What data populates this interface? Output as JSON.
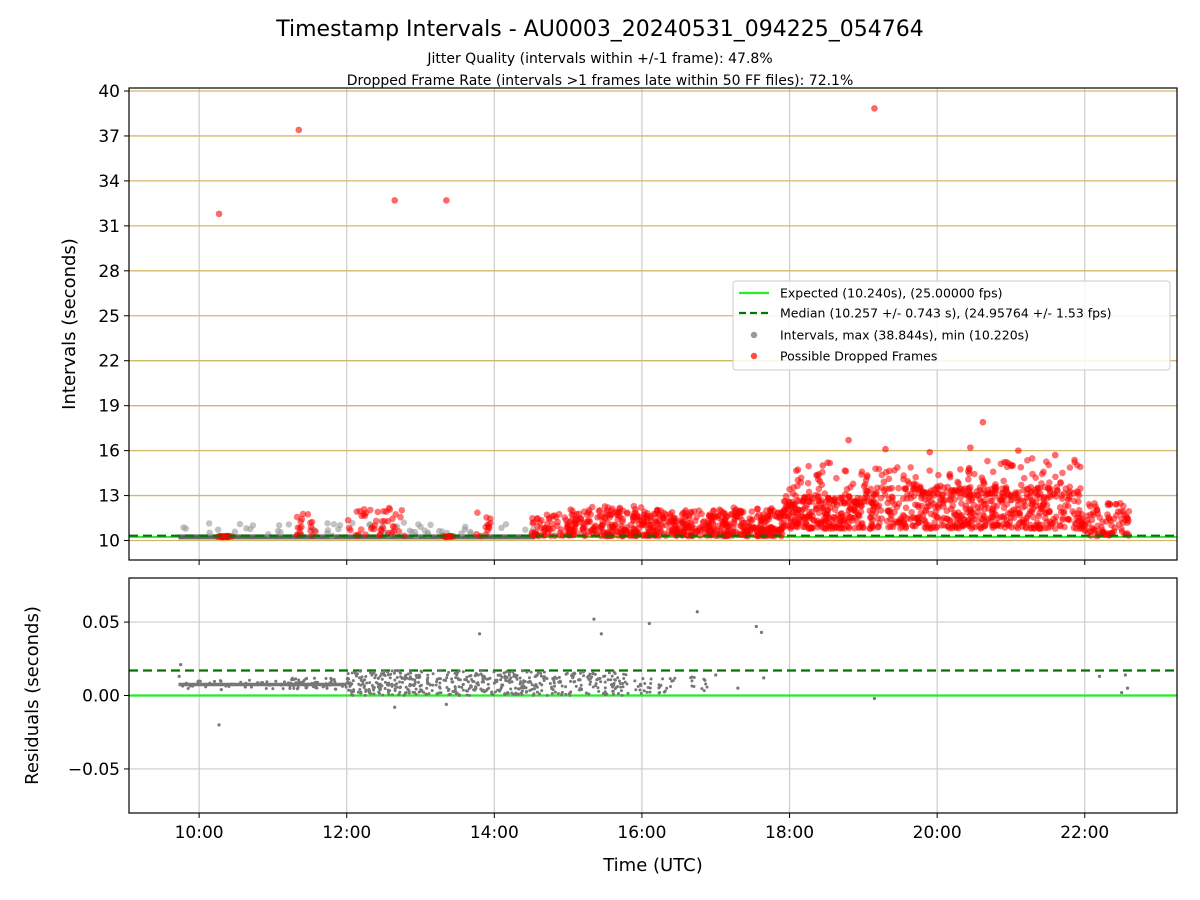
{
  "chart_data": [
    {
      "type": "scatter",
      "title": "Timestamp Intervals - AU0003_20240531_094225_054764",
      "subtitle_lines": [
        "Jitter Quality (intervals within +/-1 frame): 47.8%",
        "Dropped Frame Rate (intervals >1 frames late within 50 FF files): 72.1%"
      ],
      "xlabel": "",
      "ylabel": "Intervals (seconds)",
      "xlim": [
        9.05,
        23.25
      ],
      "ylim": [
        8.7,
        40.2
      ],
      "yticks": [
        10,
        13,
        16,
        19,
        22,
        25,
        28,
        31,
        34,
        37,
        40
      ],
      "ytick_labels": [
        "10",
        "13",
        "16",
        "19",
        "22",
        "25",
        "28",
        "31",
        "34",
        "37",
        "40"
      ],
      "xticks": [
        10,
        12,
        14,
        16,
        18,
        20,
        22
      ],
      "show_xtick_labels": false,
      "grid": "x-gray, y-goldenrod",
      "legend_position": "right",
      "legend": [
        "Expected (10.240s), (25.00000 fps)",
        "Median (10.257 +/- 0.743 s), (24.95764 +/- 1.53 fps)",
        "Intervals, max (38.844s), min (10.220s)",
        "Possible Dropped Frames"
      ],
      "colors": {
        "expected": "#22ee22",
        "median": "#007700",
        "intervals": "#999999",
        "dropped": "#ff0000"
      },
      "expected_line": 10.24,
      "median_line": 10.257,
      "intervals_band": {
        "x": [
          9.72,
          14.55
        ],
        "y": 10.24
      },
      "outliers": [
        {
          "x": 10.27,
          "y": 31.8
        },
        {
          "x": 11.35,
          "y": 37.4
        },
        {
          "x": 12.65,
          "y": 32.7
        },
        {
          "x": 13.35,
          "y": 32.7
        },
        {
          "x": 19.15,
          "y": 38.84
        }
      ],
      "dropped_clusters": [
        {
          "x": [
            10.25,
            10.45
          ],
          "y": [
            10.24,
            10.3
          ],
          "n": 25
        },
        {
          "x": [
            11.3,
            11.6
          ],
          "y": [
            10.3,
            11.8
          ],
          "n": 18
        },
        {
          "x": [
            12.0,
            12.8
          ],
          "y": [
            10.3,
            12.2
          ],
          "n": 45
        },
        {
          "x": [
            13.3,
            13.45
          ],
          "y": [
            10.24,
            10.3
          ],
          "n": 12
        },
        {
          "x": [
            13.75,
            13.95
          ],
          "y": [
            10.3,
            11.9
          ],
          "n": 12
        },
        {
          "x": [
            14.5,
            15.1
          ],
          "y": [
            10.3,
            11.8
          ],
          "n": 60
        },
        {
          "x": [
            15.0,
            16.0
          ],
          "y": [
            10.3,
            12.3
          ],
          "n": 170
        },
        {
          "x": [
            16.0,
            17.0
          ],
          "y": [
            10.3,
            12.1
          ],
          "n": 190
        },
        {
          "x": [
            17.0,
            17.9
          ],
          "y": [
            10.3,
            12.2
          ],
          "n": 190
        },
        {
          "x": [
            17.9,
            19.0
          ],
          "y": [
            10.8,
            13.0
          ],
          "n": 220
        },
        {
          "x": [
            18.0,
            19.0
          ],
          "y": [
            12.5,
            15.2
          ],
          "n": 50
        },
        {
          "x": [
            19.0,
            20.5
          ],
          "y": [
            10.8,
            13.6
          ],
          "n": 260
        },
        {
          "x": [
            19.0,
            20.5
          ],
          "y": [
            13.0,
            15.0
          ],
          "n": 60
        },
        {
          "x": [
            20.5,
            22.0
          ],
          "y": [
            10.8,
            13.6
          ],
          "n": 260
        },
        {
          "x": [
            20.5,
            22.0
          ],
          "y": [
            13.0,
            15.5
          ],
          "n": 60
        },
        {
          "x": [
            22.0,
            22.6
          ],
          "y": [
            10.3,
            12.5
          ],
          "n": 80
        }
      ],
      "dropped_points": [
        {
          "x": 18.8,
          "y": 16.7
        },
        {
          "x": 19.3,
          "y": 16.1
        },
        {
          "x": 19.9,
          "y": 15.9
        },
        {
          "x": 20.45,
          "y": 16.2
        },
        {
          "x": 20.62,
          "y": 17.9
        },
        {
          "x": 21.1,
          "y": 16.0
        },
        {
          "x": 21.6,
          "y": 15.7
        },
        {
          "x": 18.45,
          "y": 15.0
        }
      ]
    },
    {
      "type": "scatter",
      "xlabel": "Time (UTC)",
      "ylabel": "Residuals (seconds)",
      "xlim": [
        9.05,
        23.25
      ],
      "ylim": [
        -0.08,
        0.08
      ],
      "yticks": [
        -0.05,
        0.0,
        0.05
      ],
      "ytick_labels": [
        "−0.05",
        "0.00",
        "0.05"
      ],
      "xticks": [
        10,
        12,
        14,
        16,
        18,
        20,
        22
      ],
      "xtick_labels": [
        "10:00",
        "12:00",
        "14:00",
        "16:00",
        "18:00",
        "20:00",
        "22:00"
      ],
      "grid": "gray",
      "colors": {
        "zero": "#22ee22",
        "threshold": "#007700",
        "residual": "#777777"
      },
      "zero_line": 0.0,
      "threshold_line": 0.017,
      "residual_band": {
        "x": [
          9.72,
          12.0
        ],
        "y": 0.0075
      },
      "residual_clusters": [
        {
          "x": [
            11.2,
            11.9
          ],
          "y": [
            0.004,
            0.012
          ],
          "n": 40
        },
        {
          "x": [
            12.0,
            14.5
          ],
          "y": [
            0.0,
            0.017
          ],
          "n": 380
        },
        {
          "x": [
            14.5,
            15.8
          ],
          "y": [
            0.0,
            0.016
          ],
          "n": 150
        },
        {
          "x": [
            15.8,
            16.4
          ],
          "y": [
            0.001,
            0.012
          ],
          "n": 30
        },
        {
          "x": [
            16.4,
            16.9
          ],
          "y": [
            0.001,
            0.013
          ],
          "n": 15
        }
      ],
      "residual_points": [
        {
          "x": 9.75,
          "y": 0.021
        },
        {
          "x": 9.73,
          "y": 0.013
        },
        {
          "x": 10.27,
          "y": -0.02
        },
        {
          "x": 10.3,
          "y": 0.004
        },
        {
          "x": 12.65,
          "y": -0.008
        },
        {
          "x": 13.35,
          "y": -0.006
        },
        {
          "x": 13.8,
          "y": 0.042
        },
        {
          "x": 15.35,
          "y": 0.052
        },
        {
          "x": 15.45,
          "y": 0.042
        },
        {
          "x": 16.1,
          "y": 0.049
        },
        {
          "x": 16.75,
          "y": 0.057
        },
        {
          "x": 17.55,
          "y": 0.047
        },
        {
          "x": 17.62,
          "y": 0.043
        },
        {
          "x": 17.0,
          "y": 0.014
        },
        {
          "x": 17.3,
          "y": 0.005
        },
        {
          "x": 17.65,
          "y": 0.012
        },
        {
          "x": 19.15,
          "y": -0.002
        },
        {
          "x": 22.2,
          "y": 0.013
        },
        {
          "x": 22.55,
          "y": 0.014
        },
        {
          "x": 22.58,
          "y": 0.005
        },
        {
          "x": 22.5,
          "y": 0.002
        }
      ]
    }
  ]
}
